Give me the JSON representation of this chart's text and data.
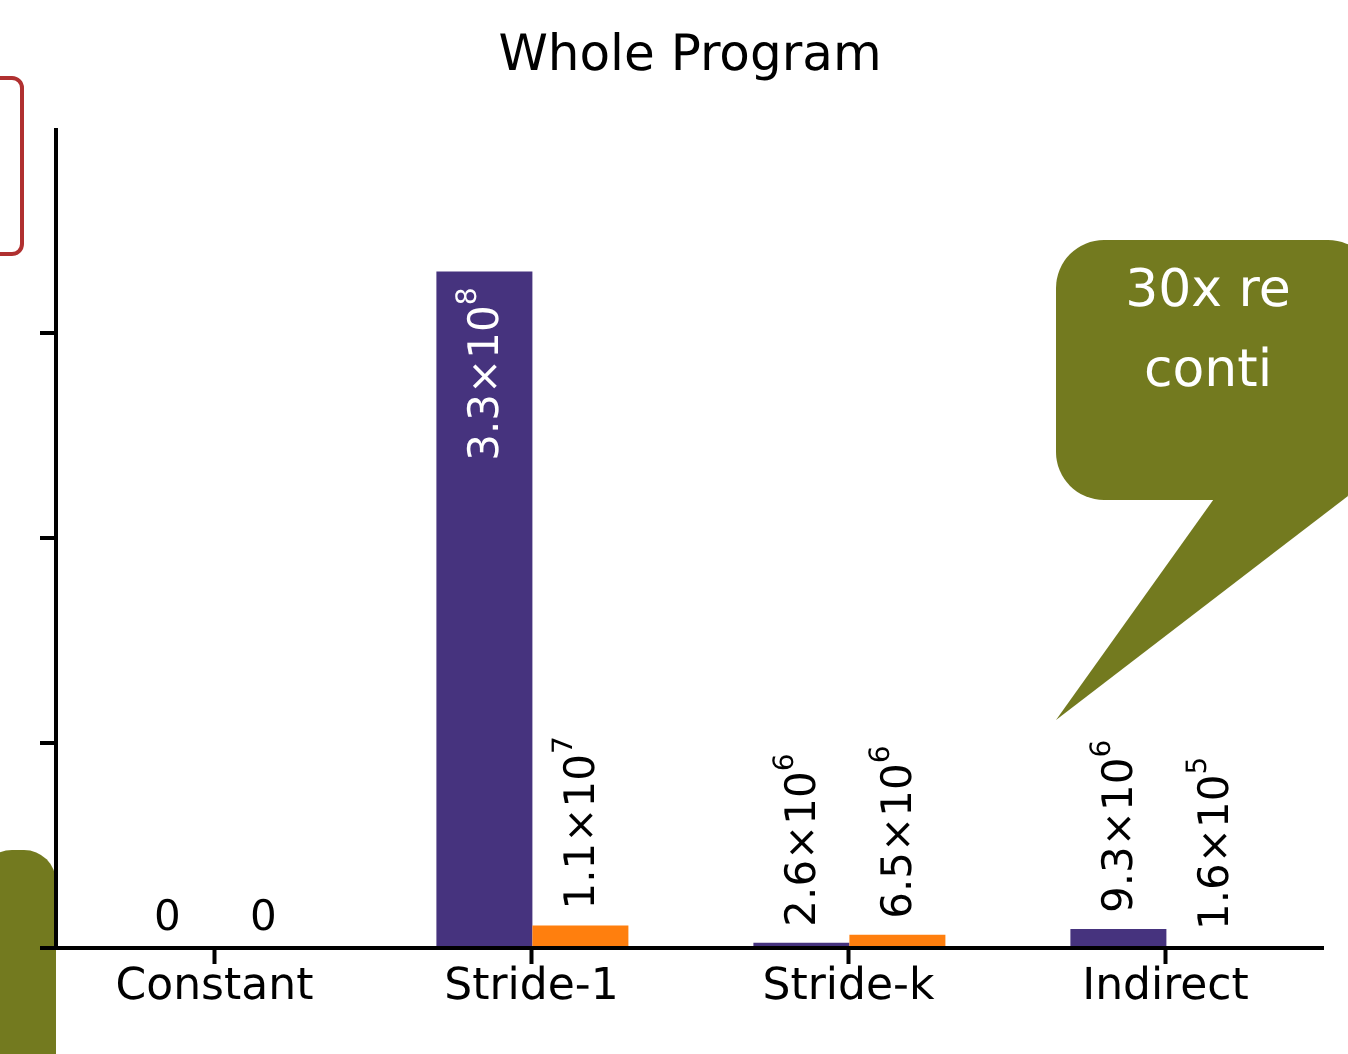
{
  "chart_data": {
    "type": "bar",
    "title": "Whole Program",
    "categories": [
      "Constant",
      "Stride-1",
      "Stride-k",
      "Indirect"
    ],
    "series": [
      {
        "color": "#46337e",
        "values": [
          0,
          330000000,
          2600000,
          9300000
        ],
        "value_labels": [
          "0",
          "3.3×10$^{8}$",
          "2.6×10$^{6}$",
          "9.3×10$^{6}$"
        ]
      },
      {
        "color": "#ff7f0e",
        "values": [
          0,
          11000000,
          6500000,
          160000
        ],
        "value_labels": [
          "0",
          "1.1×10$^{7}$",
          "6.5×10$^{6}$",
          "1.6×10$^{5}$"
        ]
      }
    ],
    "ylim": [
      0,
      400000000
    ],
    "yticks": [
      {
        "value": 0,
        "label": null
      },
      {
        "value": 100000000,
        "label": null
      },
      {
        "value": 200000000,
        "label": null
      },
      {
        "value": 300000000,
        "label": null
      }
    ],
    "tick_labels": "x",
    "grid": false,
    "legend": false,
    "annotations": [
      "30x re",
      "conti"
    ]
  }
}
